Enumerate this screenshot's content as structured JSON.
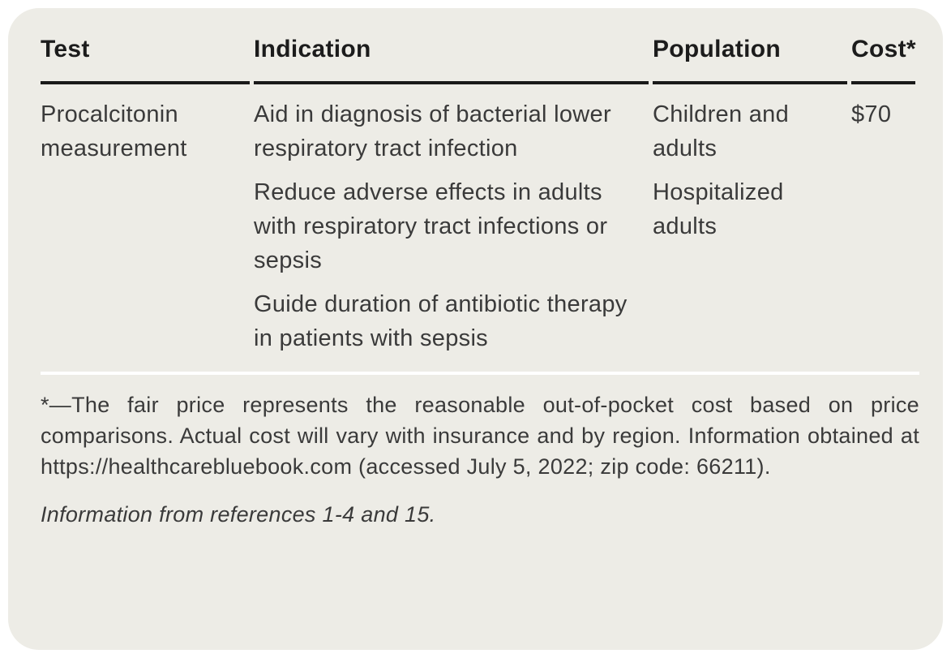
{
  "table": {
    "columns": [
      "Test",
      "Indication",
      "Population",
      "Cost*"
    ],
    "rows": [
      {
        "test": "Procalcitonin measurement",
        "indication": [
          "Aid in diagnosis of bacterial lower respiratory tract infection",
          "Reduce adverse effects in adults with respiratory tract infections or sepsis",
          "Guide duration of antibiotic therapy in patients with sepsis"
        ],
        "population": [
          "Children and adults",
          "Hospitalized adults"
        ],
        "cost": "$70"
      }
    ]
  },
  "footnotes": {
    "asterisk_note": "*—The fair price represents the reasonable out-of-pocket cost based on price comparisons. Actual cost will vary with insurance and by region. Information obtained at https://healthcarebluebook.com (accessed July 5, 2022; zip code: 66211).",
    "source_note": "Information from references 1-4 and 15."
  },
  "colors": {
    "card_background": "#edece6",
    "page_background": "#ffffff",
    "header_text": "#1c1c1c",
    "body_text": "#3a3a3a",
    "header_rule": "#191919",
    "divider": "#ffffff"
  }
}
